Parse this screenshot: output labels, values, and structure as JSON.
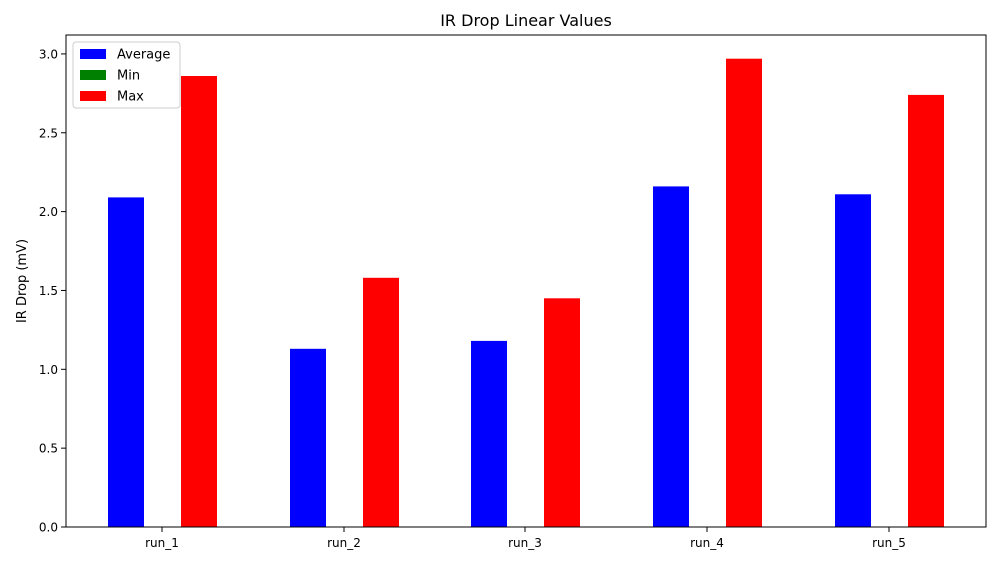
{
  "chart_data": {
    "type": "bar",
    "title": "IR Drop Linear Values",
    "xlabel": "",
    "ylabel": "IR Drop (mV)",
    "categories": [
      "run_1",
      "run_2",
      "run_3",
      "run_4",
      "run_5"
    ],
    "series": [
      {
        "name": "Average",
        "color": "#0000ff",
        "values": [
          2.09,
          1.13,
          1.18,
          2.16,
          2.11
        ]
      },
      {
        "name": "Min",
        "color": "#008000",
        "values": [
          0.0,
          0.0,
          0.0,
          0.0,
          0.0
        ]
      },
      {
        "name": "Max",
        "color": "#ff0000",
        "values": [
          2.86,
          1.58,
          1.45,
          2.97,
          2.74
        ]
      }
    ],
    "ylim": [
      0,
      3.12
    ],
    "yticks": [
      0.0,
      0.5,
      1.0,
      1.5,
      2.0,
      2.5,
      3.0
    ],
    "ytick_labels": [
      "0.0",
      "0.5",
      "1.0",
      "1.5",
      "2.0",
      "2.5",
      "3.0"
    ],
    "grid": false,
    "legend_position": "top-left"
  }
}
